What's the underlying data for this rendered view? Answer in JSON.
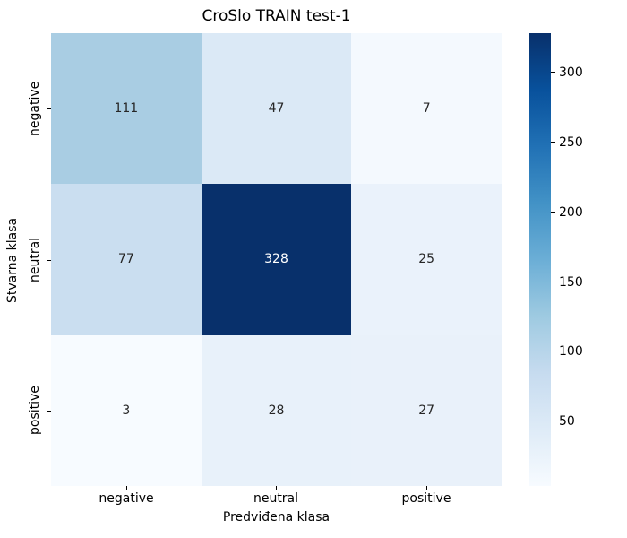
{
  "chart_data": {
    "type": "heatmap",
    "title": "CroSlo TRAIN test-1",
    "xlabel": "Predviđena klasa",
    "ylabel": "Stvarna klasa",
    "x_categories": [
      "negative",
      "neutral",
      "positive"
    ],
    "y_categories": [
      "negative",
      "neutral",
      "positive"
    ],
    "values": [
      [
        111,
        47,
        7
      ],
      [
        77,
        328,
        25
      ],
      [
        3,
        28,
        27
      ]
    ],
    "colormap": "Blues",
    "vmin": 3,
    "vmax": 328,
    "legend_position": "right-colorbar",
    "grid": false,
    "cells": [
      {
        "row": "negative",
        "col": "negative",
        "value": "111",
        "bg": "#a9cde3",
        "fg": "#262626"
      },
      {
        "row": "negative",
        "col": "neutral",
        "value": "47",
        "bg": "#dbe9f6",
        "fg": "#262626"
      },
      {
        "row": "negative",
        "col": "positive",
        "value": "7",
        "bg": "#f4f9fe",
        "fg": "#262626"
      },
      {
        "row": "neutral",
        "col": "negative",
        "value": "77",
        "bg": "#cadef0",
        "fg": "#262626"
      },
      {
        "row": "neutral",
        "col": "neutral",
        "value": "328",
        "bg": "#08306b",
        "fg": "#ffffff"
      },
      {
        "row": "neutral",
        "col": "positive",
        "value": "25",
        "bg": "#eaf2fb",
        "fg": "#262626"
      },
      {
        "row": "positive",
        "col": "negative",
        "value": "3",
        "bg": "#f7fbff",
        "fg": "#262626"
      },
      {
        "row": "positive",
        "col": "neutral",
        "value": "28",
        "bg": "#e8f1fa",
        "fg": "#262626"
      },
      {
        "row": "positive",
        "col": "positive",
        "value": "27",
        "bg": "#e9f1fa",
        "fg": "#262626"
      }
    ],
    "colorbar": {
      "ticks": [
        "50",
        "100",
        "150",
        "200",
        "250",
        "300"
      ],
      "top_color": "#08306b",
      "bottom_color": "#f7fbff"
    }
  }
}
